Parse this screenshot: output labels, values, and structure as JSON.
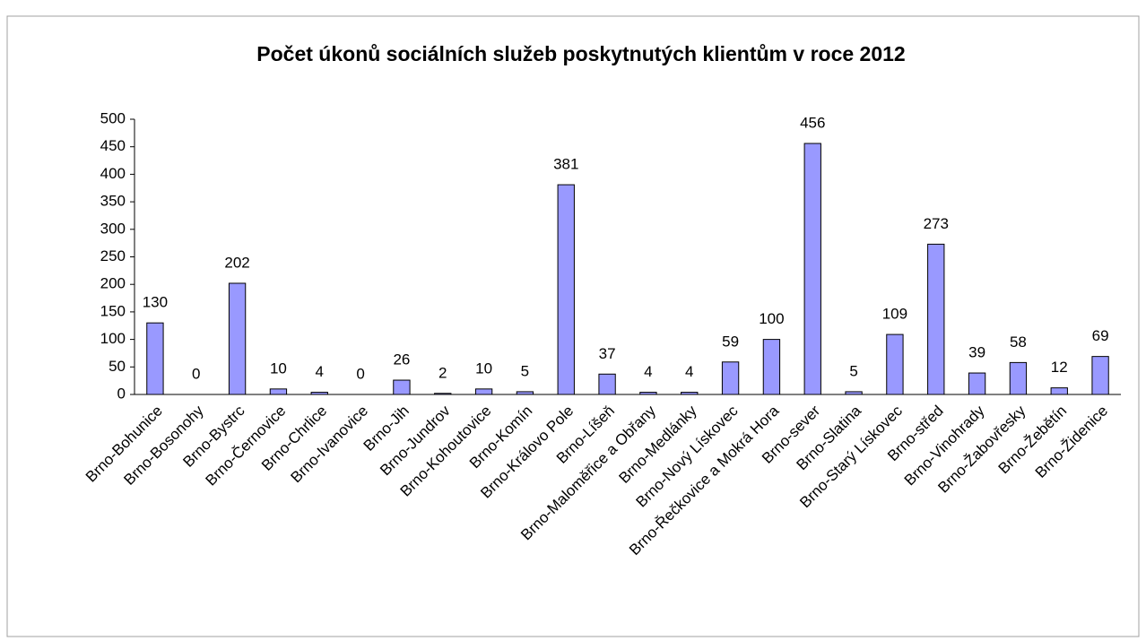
{
  "chart_data": {
    "type": "bar",
    "title": "Počet úkonů sociálních služeb poskytnutých klientům v roce 2012",
    "categories": [
      "Brno-Bohunice",
      "Brno-Bosonohy",
      "Brno-Bystrc",
      "Brno-Černovice",
      "Brno-Chrlice",
      "Brno-Ivanovice",
      "Brno-Jih",
      "Brno-Jundrov",
      "Brno-Kohoutovice",
      "Brno-Komín",
      "Brno-Královo Pole",
      "Brno-Líšeň",
      "Brno-Maloměřice a Obřany",
      "Brno-Medlánky",
      "Brno-Nový Lískovec",
      "Brno-Řečkovice a Mokrá Hora",
      "Brno-sever",
      "Brno-Slatina",
      "Brno-Starý Lískovec",
      "Brno-střed",
      "Brno-Vinohrady",
      "Brno-Žabovřesky",
      "Brno-Žebětín",
      "Brno-Židenice"
    ],
    "values": [
      130,
      0,
      202,
      10,
      4,
      0,
      26,
      2,
      10,
      5,
      381,
      37,
      4,
      4,
      59,
      100,
      456,
      5,
      109,
      273,
      39,
      58,
      12,
      69
    ],
    "color": "#9999ff",
    "ylim": [
      0,
      500
    ],
    "yticks": [
      0,
      50,
      100,
      150,
      200,
      250,
      300,
      350,
      400,
      450,
      500
    ],
    "grid": false
  }
}
